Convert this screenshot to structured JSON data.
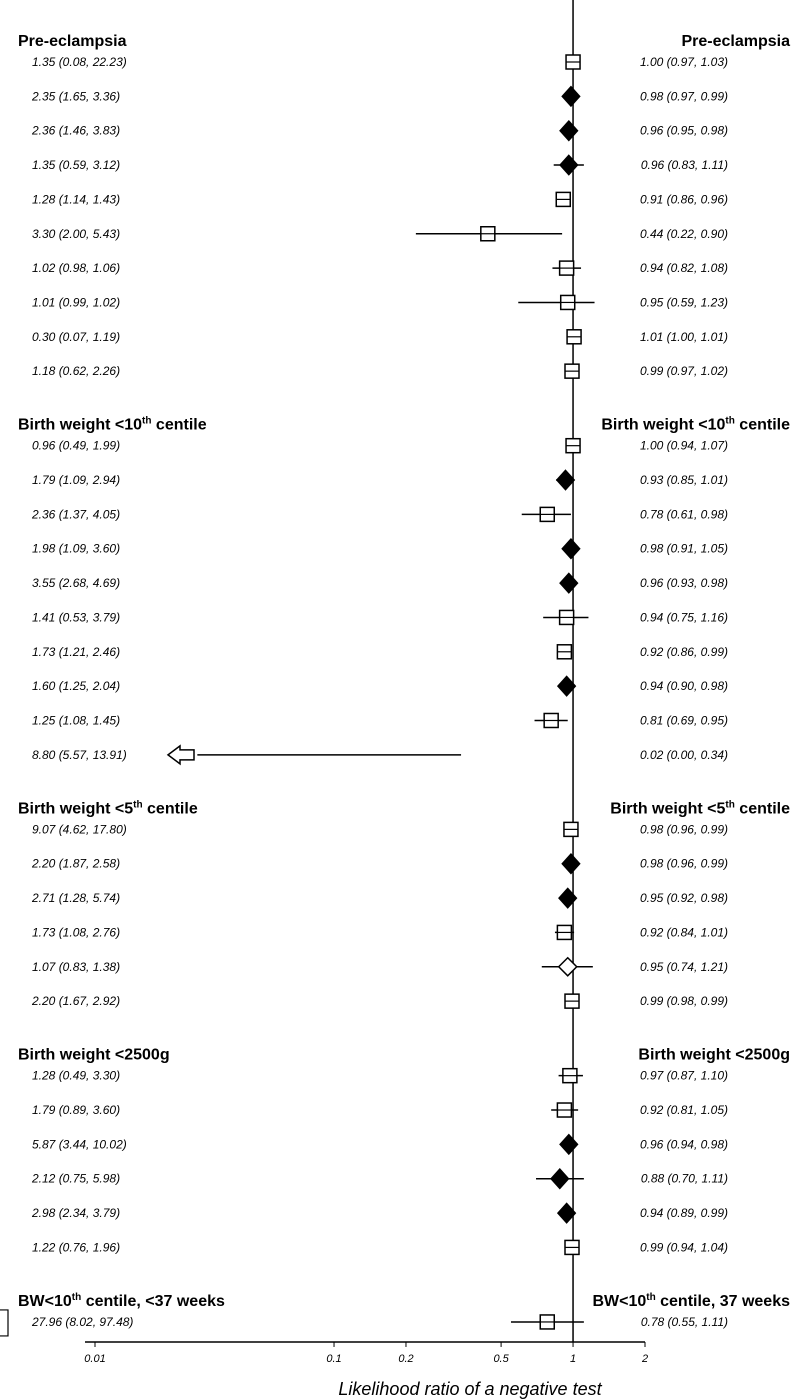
{
  "chart_data": {
    "type": "forest",
    "xlabel": "Likelihood ratio of a negative test",
    "xscale": "log",
    "xlim": [
      0.01,
      2
    ],
    "x_ticks": [
      "0.01",
      "0.1",
      "0.2",
      "0.5",
      "1",
      "2"
    ],
    "reference_line": 1,
    "sections": [
      {
        "title": "Pre-eclampsia",
        "title_sup": "",
        "title_suffix": "",
        "right_title": "Pre-eclampsia",
        "right_title_sup": "",
        "right_title_suffix": "",
        "rows": [
          {
            "left": "1.35 (0.08, 22.23)",
            "right": "1.00 (0.97, 1.03)",
            "est": 1.0,
            "lo": 0.97,
            "hi": 1.03,
            "marker": "square"
          },
          {
            "left": "2.35 (1.65, 3.36)",
            "right": "0.98 (0.97, 0.99)",
            "est": 0.98,
            "lo": 0.97,
            "hi": 0.99,
            "marker": "diamond"
          },
          {
            "left": "2.36 (1.46, 3.83)",
            "right": "0.96 (0.95, 0.98)",
            "est": 0.96,
            "lo": 0.95,
            "hi": 0.98,
            "marker": "diamond"
          },
          {
            "left": "1.35 (0.59, 3.12)",
            "right": "0.96 (0.83, 1.11)",
            "est": 0.96,
            "lo": 0.83,
            "hi": 1.11,
            "marker": "diamond"
          },
          {
            "left": "1.28 (1.14, 1.43)",
            "right": "0.91 (0.86, 0.96)",
            "est": 0.91,
            "lo": 0.86,
            "hi": 0.96,
            "marker": "square"
          },
          {
            "left": "3.30 (2.00, 5.43)",
            "right": "0.44 (0.22, 0.90)",
            "est": 0.44,
            "lo": 0.22,
            "hi": 0.9,
            "marker": "square"
          },
          {
            "left": "1.02 (0.98, 1.06)",
            "right": "0.94 (0.82, 1.08)",
            "est": 0.94,
            "lo": 0.82,
            "hi": 1.08,
            "marker": "square"
          },
          {
            "left": "1.01 (0.99, 1.02)",
            "right": "0.95 (0.59, 1.23)",
            "est": 0.95,
            "lo": 0.59,
            "hi": 1.23,
            "marker": "square"
          },
          {
            "left": "0.30 (0.07, 1.19)",
            "right": "1.01 (1.00, 1.01)",
            "est": 1.01,
            "lo": 1.0,
            "hi": 1.01,
            "marker": "square"
          },
          {
            "left": "1.18 (0.62, 2.26)",
            "right": "0.99 (0.97, 1.02)",
            "est": 0.99,
            "lo": 0.97,
            "hi": 1.02,
            "marker": "square"
          }
        ]
      },
      {
        "title": "Birth weight <10",
        "title_sup": "th",
        "title_suffix": " centile",
        "right_title": "Birth weight <10",
        "right_title_sup": "th",
        "right_title_suffix": " centile",
        "rows": [
          {
            "left": "0.96 (0.49, 1.99)",
            "right": "1.00 (0.94, 1.07)",
            "est": 1.0,
            "lo": 0.94,
            "hi": 1.07,
            "marker": "square"
          },
          {
            "left": "1.79 (1.09, 2.94)",
            "right": "0.93 (0.85, 1.01)",
            "est": 0.93,
            "lo": 0.85,
            "hi": 1.01,
            "marker": "diamond"
          },
          {
            "left": "2.36 (1.37, 4.05)",
            "right": "0.78 (0.61, 0.98)",
            "est": 0.78,
            "lo": 0.61,
            "hi": 0.98,
            "marker": "square"
          },
          {
            "left": "1.98 (1.09, 3.60)",
            "right": "0.98 (0.91, 1.05)",
            "est": 0.98,
            "lo": 0.91,
            "hi": 1.05,
            "marker": "diamond"
          },
          {
            "left": "3.55 (2.68, 4.69)",
            "right": "0.96 (0.93, 0.98)",
            "est": 0.96,
            "lo": 0.93,
            "hi": 0.98,
            "marker": "diamond"
          },
          {
            "left": "1.41 (0.53, 3.79)",
            "right": "0.94 (0.75, 1.16)",
            "est": 0.94,
            "lo": 0.75,
            "hi": 1.16,
            "marker": "square"
          },
          {
            "left": "1.73 (1.21, 2.46)",
            "right": "0.92 (0.86, 0.99)",
            "est": 0.92,
            "lo": 0.86,
            "hi": 0.99,
            "marker": "square"
          },
          {
            "left": "1.60 (1.25, 2.04)",
            "right": "0.94 (0.90, 0.98)",
            "est": 0.94,
            "lo": 0.9,
            "hi": 0.98,
            "marker": "diamond"
          },
          {
            "left": "1.25 (1.08, 1.45)",
            "right": "0.81 (0.69, 0.95)",
            "est": 0.81,
            "lo": 0.69,
            "hi": 0.95,
            "marker": "square"
          },
          {
            "left": "8.80 (5.57, 13.91)",
            "right": "0.02 (0.00, 0.34)",
            "est": 0.02,
            "lo": 0.0,
            "hi": 0.34,
            "marker": "arrow"
          }
        ]
      },
      {
        "title": "Birth weight <5",
        "title_sup": "th",
        "title_suffix": " centile",
        "right_title": "Birth weight <5",
        "right_title_sup": "th",
        "right_title_suffix": " centile",
        "rows": [
          {
            "left": "9.07 (4.62, 17.80)",
            "right": "0.98 (0.96, 0.99)",
            "est": 0.98,
            "lo": 0.96,
            "hi": 0.99,
            "marker": "square"
          },
          {
            "left": "2.20 (1.87, 2.58)",
            "right": "0.98 (0.96, 0.99)",
            "est": 0.98,
            "lo": 0.96,
            "hi": 0.99,
            "marker": "diamond"
          },
          {
            "left": "2.71 (1.28, 5.74)",
            "right": "0.95 (0.92, 0.98)",
            "est": 0.95,
            "lo": 0.92,
            "hi": 0.98,
            "marker": "diamond"
          },
          {
            "left": "1.73 (1.08, 2.76)",
            "right": "0.92 (0.84, 1.01)",
            "est": 0.92,
            "lo": 0.84,
            "hi": 1.01,
            "marker": "square"
          },
          {
            "left": "1.07 (0.83, 1.38)",
            "right": "0.95 (0.74, 1.21)",
            "est": 0.95,
            "lo": 0.74,
            "hi": 1.21,
            "marker": "diamond-open"
          },
          {
            "left": "2.20 (1.67, 2.92)",
            "right": "0.99 (0.98, 0.99)",
            "est": 0.99,
            "lo": 0.98,
            "hi": 0.99,
            "marker": "square"
          }
        ]
      },
      {
        "title": "Birth weight <2500g",
        "title_sup": "",
        "title_suffix": "",
        "right_title": "Birth weight <2500g",
        "right_title_sup": "",
        "right_title_suffix": "",
        "rows": [
          {
            "left": "1.28 (0.49, 3.30)",
            "right": "0.97 (0.87, 1.10)",
            "est": 0.97,
            "lo": 0.87,
            "hi": 1.1,
            "marker": "square"
          },
          {
            "left": "1.79 (0.89, 3.60)",
            "right": "0.92 (0.81, 1.05)",
            "est": 0.92,
            "lo": 0.81,
            "hi": 1.05,
            "marker": "square"
          },
          {
            "left": "5.87 (3.44, 10.02)",
            "right": "0.96 (0.94, 0.98)",
            "est": 0.96,
            "lo": 0.94,
            "hi": 0.98,
            "marker": "diamond"
          },
          {
            "left": "2.12 (0.75, 5.98)",
            "right": "0.88 (0.70, 1.11)",
            "est": 0.88,
            "lo": 0.7,
            "hi": 1.11,
            "marker": "diamond"
          },
          {
            "left": "2.98 (2.34, 3.79)",
            "right": "0.94 (0.89, 0.99)",
            "est": 0.94,
            "lo": 0.89,
            "hi": 0.99,
            "marker": "diamond"
          },
          {
            "left": "1.22 (0.76, 1.96)",
            "right": "0.99 (0.94, 1.04)",
            "est": 0.99,
            "lo": 0.94,
            "hi": 1.04,
            "marker": "square"
          }
        ]
      },
      {
        "title": "BW<10",
        "title_sup": "th",
        "title_suffix": " centile, <37 weeks",
        "right_title": "BW<10",
        "right_title_sup": "th",
        "right_title_suffix": " centile, 37 weeks",
        "rows": [
          {
            "left": "27.96 (8.02, 97.48)",
            "right": "0.78 (0.55, 1.11)",
            "est": 0.78,
            "lo": 0.55,
            "hi": 1.11,
            "marker": "square"
          }
        ]
      }
    ]
  }
}
